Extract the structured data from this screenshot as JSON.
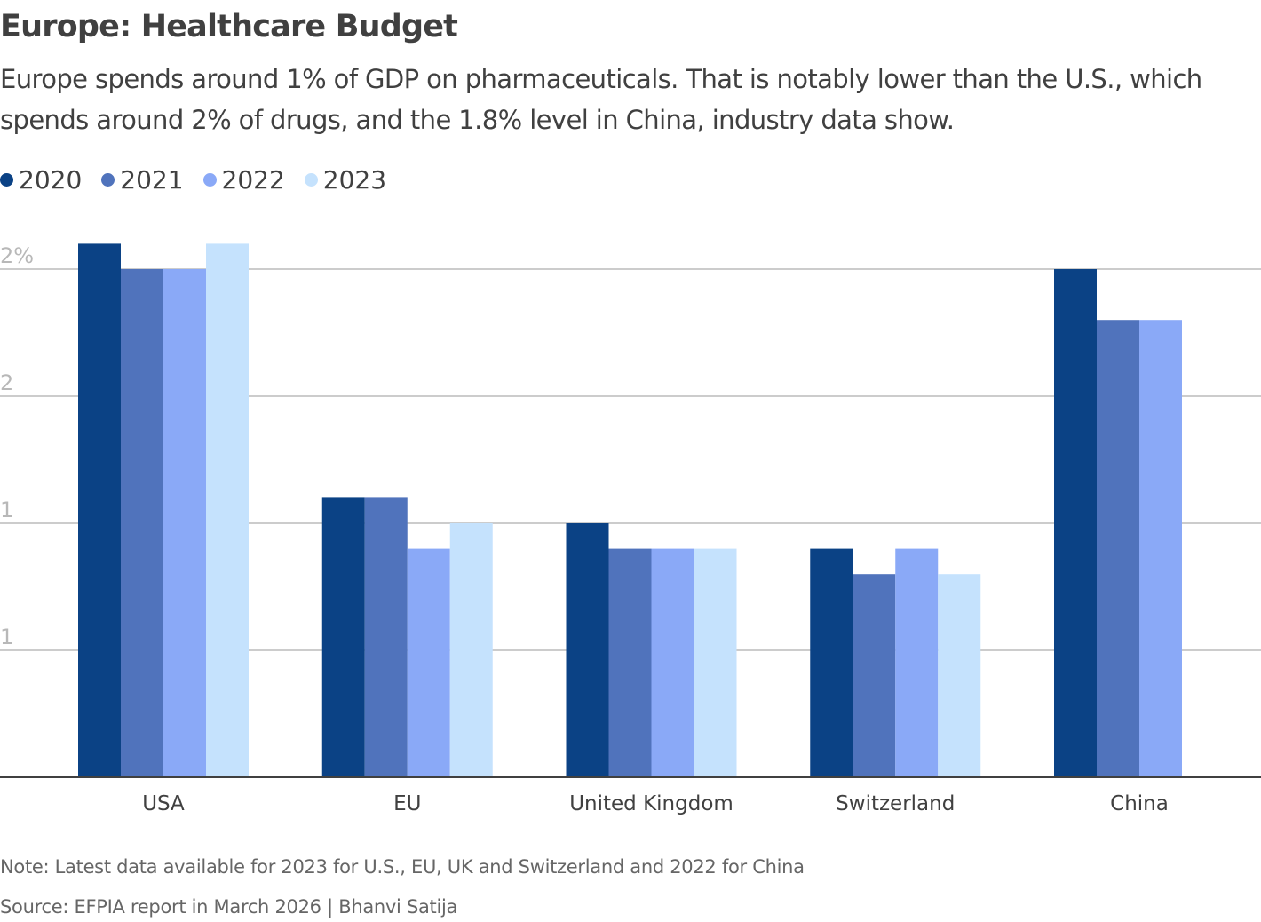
{
  "header": {
    "title": "Europe: Healthcare Budget",
    "subtitle": "Europe spends around 1% of GDP on pharmaceuticals. That is notably lower than the U.S., which spends around 2% of drugs, and the 1.8% level in China, industry data show."
  },
  "footer": {
    "note": "Note: Latest data available for 2023 for U.S., EU, UK and Switzerland and 2022 for China",
    "source": "Source: EFPIA report in March 2026  | Bhanvi Satija"
  },
  "chart_data": {
    "type": "bar",
    "title": "Europe: Healthcare Budget",
    "xlabel": "",
    "ylabel": "",
    "categories": [
      "USA",
      "EU",
      "United Kingdom",
      "Switzerland",
      "China"
    ],
    "series": [
      {
        "name": "2020",
        "color": "#0b4285",
        "values": [
          2.1,
          1.1,
          1.0,
          0.9,
          2.0
        ]
      },
      {
        "name": "2021",
        "color": "#5073bc",
        "values": [
          2.0,
          1.1,
          0.9,
          0.8,
          1.8
        ]
      },
      {
        "name": "2022",
        "color": "#8aa9f7",
        "values": [
          2.0,
          0.9,
          0.9,
          0.9,
          1.8
        ]
      },
      {
        "name": "2023",
        "color": "#c5e2fd",
        "values": [
          2.1,
          1.0,
          0.9,
          0.8,
          null
        ]
      }
    ],
    "yticks": [
      {
        "value": 0.5,
        "label": "1"
      },
      {
        "value": 1.0,
        "label": "1"
      },
      {
        "value": 1.5,
        "label": "2"
      },
      {
        "value": 2.0,
        "label": "2%"
      }
    ],
    "ylim": [
      0,
      2.1
    ],
    "grid": true,
    "legend_position": "top-left"
  }
}
